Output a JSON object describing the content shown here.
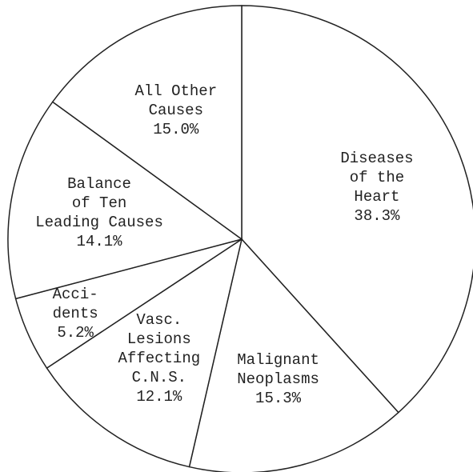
{
  "chart_data": {
    "type": "pie",
    "categories": [
      "Diseases\nof the\nHeart",
      "Malignant\nNeoplasms",
      "Vasc.\nLesions\nAffecting\nC.N.S.",
      "Acci-\ndents",
      "Balance\nof Ten\nLeading Causes",
      "All Other\nCauses"
    ],
    "values": [
      38.3,
      15.3,
      12.1,
      5.2,
      14.1,
      15.0
    ],
    "value_labels": [
      "38.3%",
      "15.3%",
      "12.1%",
      "5.2%",
      "14.1%",
      "15.0%"
    ],
    "color": "#ffffff"
  }
}
